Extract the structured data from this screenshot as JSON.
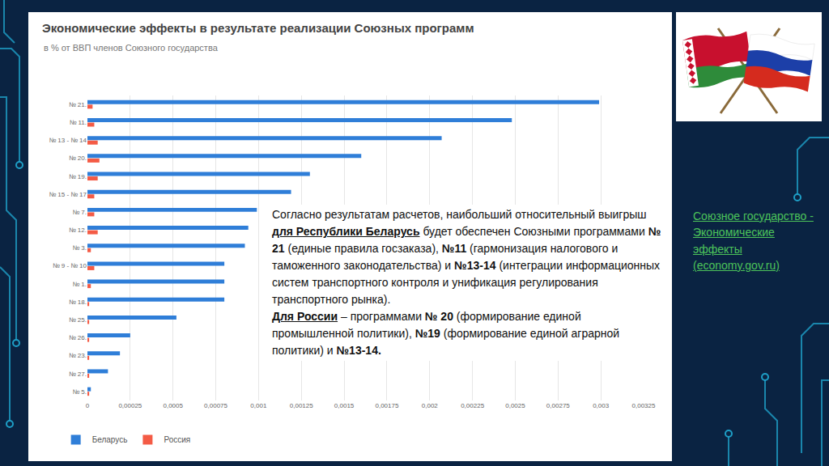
{
  "chart_data": {
    "type": "bar",
    "orientation": "horizontal",
    "title": "Экономические эффекты в результате реализации Союзных программ",
    "subtitle": "в % от ВВП членов Союзного государства",
    "categories": [
      "№ 21.",
      "№ 11.",
      "№ 13 - № 14",
      "№ 20.",
      "№ 19.",
      "№ 15 - № 17",
      "№ 7.",
      "№ 12.",
      "№ 3.",
      "№ 9 - № 10",
      "№ 1.",
      "№ 18.",
      "№ 25.",
      "№ 26.",
      "№ 23.",
      "№ 27.",
      "№ 5."
    ],
    "series": [
      {
        "name": "Беларусь",
        "color": "#2f7ed8",
        "values": [
          0.00299,
          0.00248,
          0.00207,
          0.0016,
          0.0013,
          0.00119,
          0.00099,
          0.00094,
          0.00092,
          0.0008,
          0.0008,
          0.0008,
          0.00052,
          0.00025,
          0.00019,
          0.00012,
          2e-05
        ]
      },
      {
        "name": "Россия",
        "color": "#f45b45",
        "values": [
          3e-05,
          4e-05,
          6e-05,
          7e-05,
          6e-05,
          4e-05,
          4e-05,
          6e-05,
          2e-05,
          4e-05,
          2e-05,
          1e-05,
          1e-05,
          1e-05,
          1e-05,
          1e-05,
          1e-05
        ]
      }
    ],
    "xlim": [
      0,
      0.00325
    ],
    "xticks": [
      0,
      {
        "value": 0.00025,
        "label": "0,00025"
      },
      {
        "value": 0.0005,
        "label": "0,0005"
      },
      {
        "value": 0.00075,
        "label": "0,00075"
      },
      {
        "value": 0.001,
        "label": "0,001"
      },
      {
        "value": 0.00125,
        "label": "0,00125"
      },
      {
        "value": 0.0015,
        "label": "0,0015"
      },
      {
        "value": 0.00175,
        "label": "0,00175"
      },
      {
        "value": 0.002,
        "label": "0,002"
      },
      {
        "value": 0.00225,
        "label": "0,00225"
      },
      {
        "value": 0.0025,
        "label": "0,0025"
      },
      {
        "value": 0.00275,
        "label": "0,00275"
      },
      {
        "value": 0.003,
        "label": "0,003"
      },
      {
        "value": 0.00325,
        "label": "0,00325"
      }
    ],
    "grid": true,
    "legend": "bottom left"
  },
  "note": {
    "paragraphs": [
      [
        {
          "text": "Согласно результатам расчетов, наибольший относительный выигрыш ",
          "style": "normal"
        },
        {
          "text": "для Республики Беларусь",
          "style": "bold underline"
        },
        {
          "text": " будет обеспечен Союзными программами ",
          "style": "normal"
        },
        {
          "text": "№ 21",
          "style": "bold"
        },
        {
          "text": " (единые правила госзаказа), ",
          "style": "normal"
        },
        {
          "text": "№11",
          "style": "bold"
        },
        {
          "text": " (гармонизация налогового и таможенного законодательства) и ",
          "style": "normal"
        },
        {
          "text": "№13-14",
          "style": "bold"
        },
        {
          "text": " (интеграции информационных систем транспортного контроля и унификация регулирования транспортного рынка).",
          "style": "normal"
        }
      ],
      [
        {
          "text": "Для России",
          "style": "bold underline"
        },
        {
          "text": " – программами ",
          "style": "normal"
        },
        {
          "text": "№ 20",
          "style": "bold"
        },
        {
          "text": " (формирование единой промышленной политики), ",
          "style": "normal"
        },
        {
          "text": "№19",
          "style": "bold"
        },
        {
          "text": " (формирование единой аграрной политики) и ",
          "style": "normal"
        },
        {
          "text": "№13-14.",
          "style": "bold"
        }
      ]
    ]
  },
  "link": {
    "text": "Союзное государство - Экономические эффекты",
    "source": "(economy.gov.ru)"
  }
}
